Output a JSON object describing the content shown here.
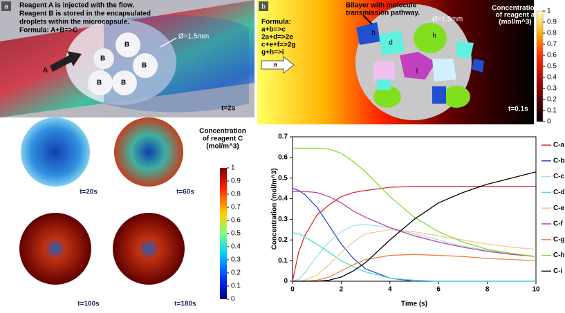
{
  "panel_a": {
    "label": "a",
    "text": [
      "Reagent A is injected with the flow.",
      "Reagent B is stored in the encapsulated",
      "droplets within the microcapsule.",
      "Formula: A+B=>C"
    ],
    "diameter": "Ø=1.5mm",
    "reagent_a": "A",
    "reagent_b": [
      "B",
      "B",
      "B",
      "B",
      "B"
    ],
    "time_top": "t=2s",
    "colorbar_title": [
      "Concentration",
      "of reagent C",
      "(mol/m^3)"
    ],
    "colorbar_ticks": [
      0,
      0.1,
      0.2,
      0.3,
      0.4,
      0.5,
      0.6,
      0.7,
      0.8,
      0.9,
      1
    ],
    "times": [
      "t=20s",
      "t=60s",
      "t=100s",
      "t=180s"
    ]
  },
  "panel_b": {
    "label": "b",
    "formula": [
      "Formula:",
      "a+b=>c",
      "2a+d=>2e",
      "c+e+f=>2g",
      "g+h=>i"
    ],
    "bilayer": [
      "Bilayer with molecule",
      "transmission pathway."
    ],
    "diameter": "Ø=1.5mm",
    "inlet": "a",
    "droplets": [
      "b",
      "d",
      "h",
      "f"
    ],
    "colorbar_title": [
      "Concentration",
      "of reagent a",
      "(mol/m^3)"
    ],
    "colorbar_ticks": [
      0,
      0.1,
      0.2,
      0.3,
      0.4,
      0.5,
      0.6,
      0.7,
      0.8,
      0.9,
      1
    ],
    "time": "t=0.1s"
  },
  "chart_data": {
    "type": "line",
    "x_label": "Time (s)",
    "y_label": "Concentration  (mol/m^3)",
    "x": [
      0,
      0.25,
      0.5,
      1,
      1.5,
      2,
      2.5,
      3,
      4,
      5,
      6,
      7,
      8,
      9,
      10
    ],
    "xlim": [
      0,
      10
    ],
    "xticks": [
      0,
      2,
      4,
      6,
      8,
      10
    ],
    "ylim": [
      0,
      0.7
    ],
    "yticks": [
      0,
      0.1,
      0.2,
      0.3,
      0.4,
      0.5,
      0.6,
      0.7
    ],
    "legend": "right",
    "series": [
      {
        "name": "C-a",
        "color": "#e02828",
        "values": [
          0,
          0.14,
          0.22,
          0.32,
          0.37,
          0.41,
          0.43,
          0.44,
          0.455,
          0.46,
          0.46,
          0.46,
          0.46,
          0.46,
          0.46
        ]
      },
      {
        "name": "C-b",
        "color": "#2848d0",
        "values": [
          0.45,
          0.44,
          0.42,
          0.36,
          0.27,
          0.18,
          0.11,
          0.06,
          0.015,
          0,
          0,
          0,
          0,
          0,
          0
        ]
      },
      {
        "name": "C-c",
        "color": "#a8dce8",
        "values": [
          0,
          0.01,
          0.04,
          0.12,
          0.19,
          0.24,
          0.27,
          0.275,
          0.26,
          0.23,
          0.2,
          0.17,
          0.15,
          0.13,
          0.12
        ]
      },
      {
        "name": "C-d",
        "color": "#40e0c8",
        "values": [
          0.235,
          0.23,
          0.215,
          0.18,
          0.14,
          0.1,
          0.07,
          0.045,
          0.015,
          0.005,
          0,
          0,
          0,
          0,
          0
        ]
      },
      {
        "name": "C-e",
        "color": "#f0c890",
        "values": [
          0,
          0,
          0.005,
          0.03,
          0.08,
          0.14,
          0.19,
          0.23,
          0.25,
          0.24,
          0.22,
          0.2,
          0.18,
          0.165,
          0.155
        ]
      },
      {
        "name": "C-f",
        "color": "#c040a0",
        "values": [
          0.435,
          0.435,
          0.435,
          0.43,
          0.41,
          0.38,
          0.34,
          0.31,
          0.26,
          0.22,
          0.19,
          0.165,
          0.145,
          0.13,
          0.12
        ]
      },
      {
        "name": "C-g",
        "color": "#f08040",
        "values": [
          0,
          0,
          0,
          0.005,
          0.02,
          0.05,
          0.08,
          0.105,
          0.125,
          0.13,
          0.125,
          0.12,
          0.11,
          0.105,
          0.1
        ]
      },
      {
        "name": "C-h",
        "color": "#80e020",
        "values": [
          0.645,
          0.645,
          0.645,
          0.645,
          0.64,
          0.62,
          0.58,
          0.53,
          0.41,
          0.31,
          0.24,
          0.19,
          0.155,
          0.135,
          0.12
        ]
      },
      {
        "name": "C-i",
        "color": "#000000",
        "values": [
          0,
          0,
          0,
          0,
          0.005,
          0.02,
          0.05,
          0.09,
          0.2,
          0.3,
          0.38,
          0.43,
          0.47,
          0.5,
          0.53
        ]
      }
    ]
  }
}
